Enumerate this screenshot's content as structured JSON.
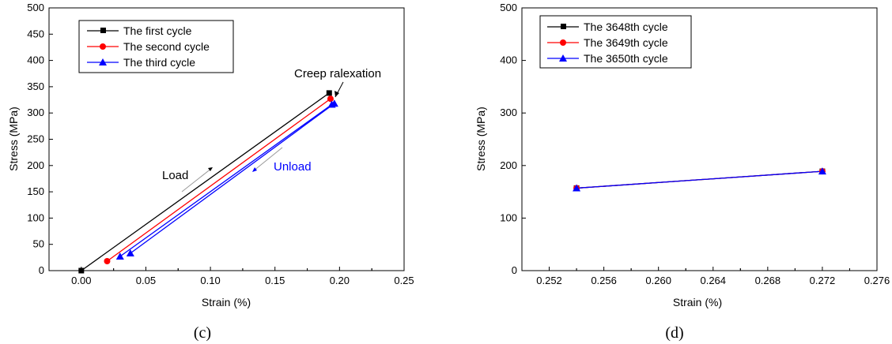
{
  "chart_data": [
    {
      "type": "line",
      "caption": "(c)",
      "xlabel": "Strain (%)",
      "ylabel": "Stress (MPa)",
      "xlim": [
        -0.025,
        0.25
      ],
      "ylim": [
        0,
        500
      ],
      "xticks": [
        "0.00",
        "0.05",
        "0.10",
        "0.15",
        "0.20",
        "0.25"
      ],
      "yticks": [
        "0",
        "50",
        "100",
        "150",
        "200",
        "250",
        "300",
        "350",
        "400",
        "450",
        "500"
      ],
      "legend_position": "top-left",
      "series": [
        {
          "name": "The first cycle",
          "color": "#000000",
          "marker": "square",
          "x": [
            0.0,
            0.192
          ],
          "y": [
            0,
            338
          ]
        },
        {
          "name": "The second cycle",
          "color": "#ff0000",
          "marker": "circle",
          "x": [
            0.02,
            0.193
          ],
          "y": [
            18,
            327
          ]
        },
        {
          "name": "The third cycle",
          "color": "#0000ff",
          "marker": "triangle",
          "x": [
            0.03,
            0.194
          ],
          "y": [
            27,
            316
          ]
        }
      ],
      "extra_segments": [
        {
          "color": "#0000ff",
          "x": [
            0.038,
            0.196
          ],
          "y": [
            33,
            318
          ]
        }
      ],
      "annotations": [
        {
          "text": "Creep ralexation",
          "color": "#000000"
        },
        {
          "text": "Load",
          "color": "#000000"
        },
        {
          "text": "Unload",
          "color": "#0000ff"
        }
      ]
    },
    {
      "type": "line",
      "caption": "(d)",
      "xlabel": "Strain (%)",
      "ylabel": "Stress (MPa)",
      "xlim": [
        0.25,
        0.276
      ],
      "ylim": [
        0,
        500
      ],
      "xticks": [
        "0.252",
        "0.256",
        "0.260",
        "0.264",
        "0.268",
        "0.272",
        "0.276"
      ],
      "yticks": [
        "0",
        "100",
        "200",
        "300",
        "400",
        "500"
      ],
      "legend_position": "top-left",
      "series": [
        {
          "name": "The 3648th cycle",
          "color": "#000000",
          "marker": "square",
          "x": [
            0.254,
            0.272
          ],
          "y": [
            157,
            189
          ]
        },
        {
          "name": "The 3649th cycle",
          "color": "#ff0000",
          "marker": "circle",
          "x": [
            0.254,
            0.272
          ],
          "y": [
            157,
            189
          ]
        },
        {
          "name": "The 3650th cycle",
          "color": "#0000ff",
          "marker": "triangle",
          "x": [
            0.254,
            0.272
          ],
          "y": [
            157,
            189
          ]
        }
      ]
    }
  ]
}
